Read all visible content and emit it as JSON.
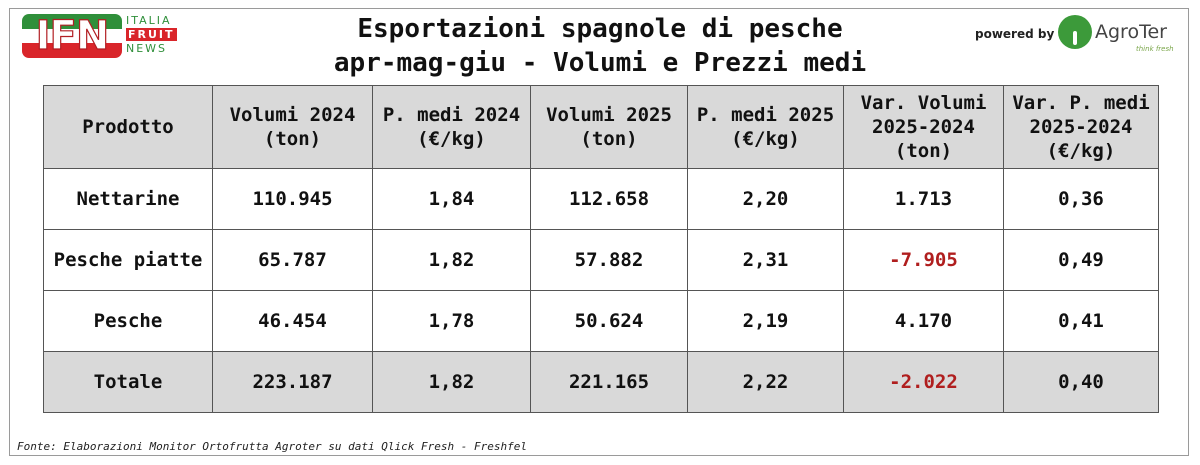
{
  "header": {
    "logo_letters": "IFN",
    "logo_line1": "ITALIA",
    "logo_line2": "FRUIT",
    "logo_line3": "NEWS",
    "title_line1": "Esportazioni spagnole di pesche",
    "title_line2": "apr-mag-giu - Volumi e Prezzi medi",
    "powered_by": "powered by",
    "agroter_name": "AgroTer",
    "agroter_tagline": "think fresh"
  },
  "table": {
    "columns": [
      "Prodotto",
      "Volumi 2024\n(ton)",
      "P. medi 2024\n(€/kg)",
      "Volumi 2025\n(ton)",
      "P. medi 2025\n(€/kg)",
      "Var. Volumi\n2025-2024\n(ton)",
      "Var. P. medi\n2025-2024\n(€/kg)"
    ],
    "rows": [
      [
        "Nettarine",
        "110.945",
        "1,84",
        "112.658",
        "2,20",
        "1.713",
        "0,36"
      ],
      [
        "Pesche piatte",
        "65.787",
        "1,82",
        "57.882",
        "2,31",
        "-7.905",
        "0,49"
      ],
      [
        "Pesche",
        "46.454",
        "1,78",
        "50.624",
        "2,19",
        "4.170",
        "0,41"
      ],
      [
        "Totale",
        "223.187",
        "1,82",
        "221.165",
        "2,22",
        "-2.022",
        "0,40"
      ]
    ]
  },
  "footer": {
    "source": "Fonte: Elaborazioni Monitor Ortofrutta Agroter su dati Qlick Fresh - Freshfel"
  },
  "colors": {
    "header_bg": "#d9d9d9",
    "negative": "#b01e1e",
    "logo_green": "#2f8f3a",
    "logo_red": "#d9252a"
  }
}
